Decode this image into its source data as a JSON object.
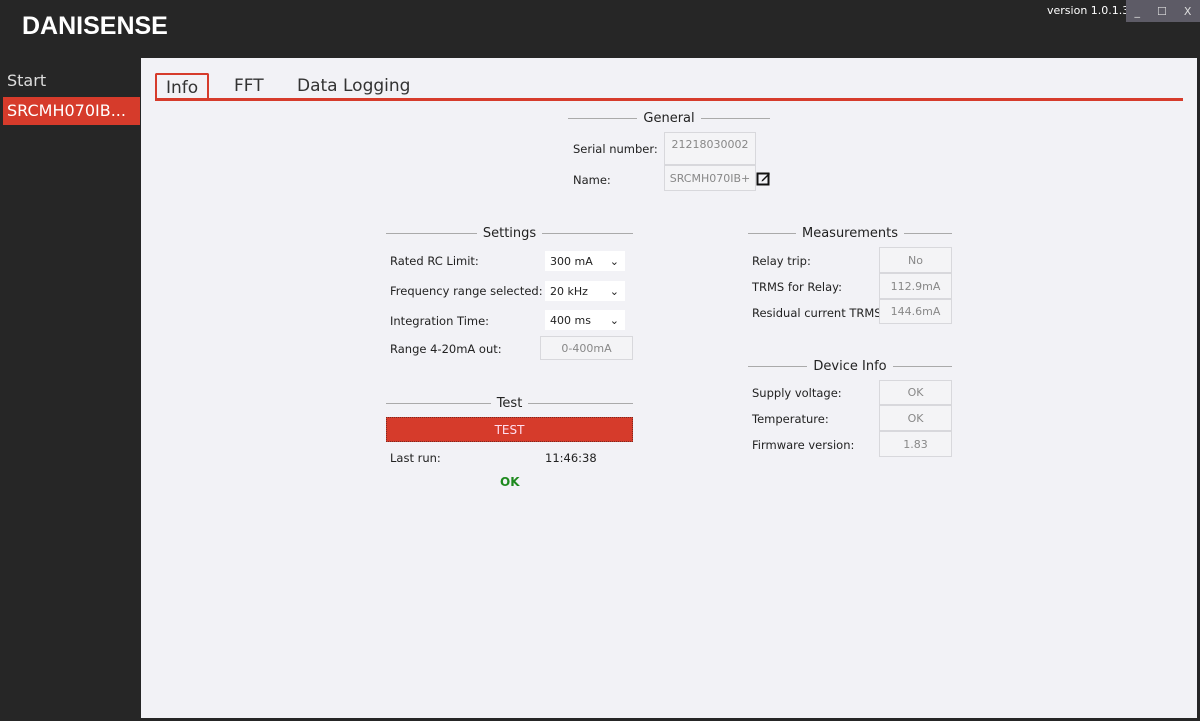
{
  "app": {
    "logo": "DANISENSE",
    "version": "version 1.0.1.3",
    "window_buttons": {
      "minimize": "_",
      "maximize": "☐",
      "close": "X"
    }
  },
  "sidebar": {
    "items": [
      {
        "label": "Start",
        "selected": false
      },
      {
        "label": "SRCMH070IB...",
        "selected": true
      }
    ]
  },
  "tabs": [
    {
      "label": "Info",
      "active": true
    },
    {
      "label": "FFT",
      "active": false
    },
    {
      "label": "Data Logging",
      "active": false
    }
  ],
  "general": {
    "title": "General",
    "serial_label": "Serial number:",
    "serial_value": "21218030002",
    "name_label": "Name:",
    "name_value": "SRCMH070IB+"
  },
  "settings": {
    "title": "Settings",
    "rows": [
      {
        "label": "Rated RC Limit:",
        "value": "300 mA"
      },
      {
        "label": "Frequency range selected:",
        "value": "20 kHz"
      },
      {
        "label": "Integration Time:",
        "value": "400 ms"
      }
    ],
    "range_label": "Range 4-20mA out:",
    "range_value": "0-400mA"
  },
  "test": {
    "title": "Test",
    "button": "TEST",
    "last_run_label": "Last run:",
    "last_run_time": "11:46:38",
    "result": "OK"
  },
  "measurements": {
    "title": "Measurements",
    "rows": [
      {
        "label": "Relay trip:",
        "value": "No"
      },
      {
        "label": "TRMS for Relay:",
        "value": "112.9mA"
      },
      {
        "label": "Residual current TRMS",
        "value": "144.6mA"
      }
    ]
  },
  "device_info": {
    "title": "Device Info",
    "rows": [
      {
        "label": "Supply voltage:",
        "value": "OK"
      },
      {
        "label": "Temperature:",
        "value": "OK"
      },
      {
        "label": "Firmware version:",
        "value": "1.83"
      }
    ]
  },
  "colors": {
    "accent": "#d63b2b",
    "ok": "#1e8a1e",
    "background": "#262626",
    "panel": "#f2f2f6"
  }
}
